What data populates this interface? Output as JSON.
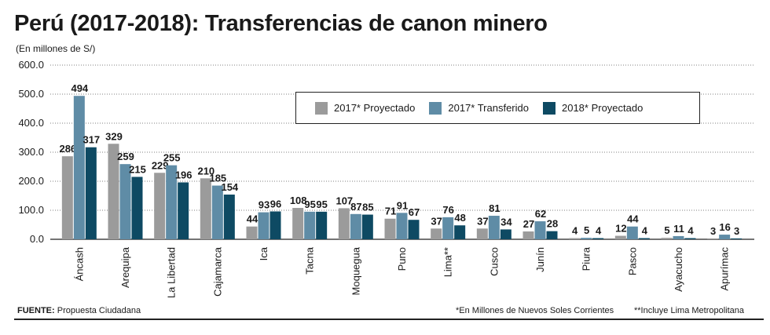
{
  "chart_data": {
    "type": "bar",
    "title": "Perú (2017-2018): Transferencias de canon minero",
    "subtitle": "(En millones de S/)",
    "xlabel": "",
    "ylabel": "",
    "ylim": [
      0,
      600
    ],
    "yticks": [
      "0.0",
      "100.0",
      "200.0",
      "300.0",
      "400.0",
      "500.0",
      "600.0"
    ],
    "categories": [
      "Áncash",
      "Arequipa",
      "La Libertad",
      "Cajamarca",
      "Ica",
      "Tacna",
      "Moquegua",
      "Puno",
      "Lima**",
      "Cusco",
      "Junín",
      "Piura",
      "Pasco",
      "Ayacucho",
      "Apurímac"
    ],
    "series": [
      {
        "name": "2017* Proyectado",
        "color": "#9b9b9b",
        "values": [
          286,
          329,
          229,
          210,
          44,
          108,
          107,
          71,
          37,
          37,
          27,
          4,
          12,
          5,
          3
        ]
      },
      {
        "name": "2017* Transferido",
        "color": "#5f8ca6",
        "values": [
          494,
          259,
          255,
          185,
          93,
          95,
          87,
          91,
          76,
          81,
          62,
          5,
          44,
          11,
          16
        ]
      },
      {
        "name": "2018* Proyectado",
        "color": "#0e4a63",
        "values": [
          317,
          215,
          196,
          154,
          96,
          95,
          85,
          67,
          48,
          34,
          28,
          4,
          4,
          4,
          3
        ]
      }
    ],
    "legend_position": "top-right"
  },
  "footer": {
    "source_label": "FUENTE:",
    "source_text": "Propuesta Ciudadana",
    "note1": "*En Millones de Nuevos Soles Corrientes",
    "note2": "**Incluye Lima Metropolitana"
  }
}
